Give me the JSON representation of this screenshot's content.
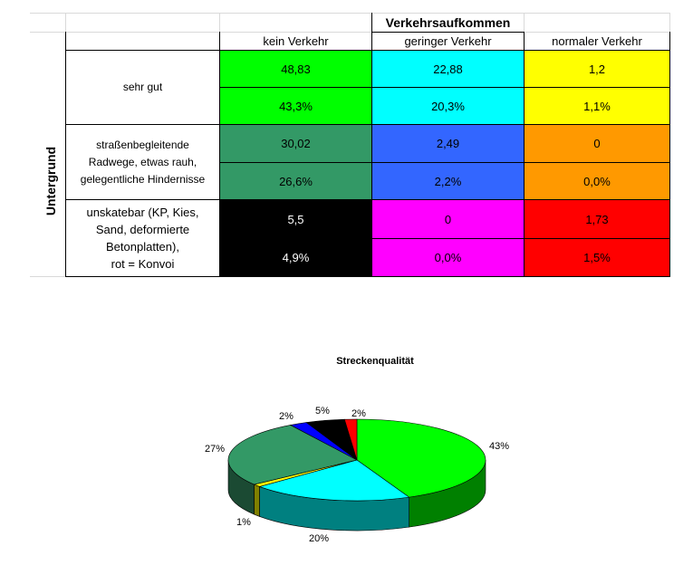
{
  "table": {
    "group_header": "Verkehrsaufkommen",
    "side_header": "Untergrund",
    "columns": [
      "kein Verkehr",
      "geringer Verkehr",
      "normaler Verkehr"
    ],
    "rows": [
      {
        "label_lines": [
          "sehr gut"
        ],
        "values": [
          "48,83",
          "22,88",
          "1,2"
        ],
        "percents": [
          "43,3%",
          "20,3%",
          "1,1%"
        ],
        "colors": [
          "#00ff00",
          "#00ffff",
          "#ffff00"
        ],
        "text_colors": [
          "#000000",
          "#000000",
          "#000000"
        ]
      },
      {
        "label_lines": [
          "straßenbegleitende",
          "Radwege, etwas rauh,",
          "gelegentliche Hindernisse"
        ],
        "values": [
          "30,02",
          "2,49",
          "0"
        ],
        "percents": [
          "26,6%",
          "2,2%",
          "0,0%"
        ],
        "colors": [
          "#339966",
          "#3366ff",
          "#ff9900"
        ],
        "text_colors": [
          "#000000",
          "#000000",
          "#000000"
        ]
      },
      {
        "label_lines": [
          "unskatebar (KP, Kies,",
          "Sand, deformierte",
          "Betonplatten),",
          "rot = Konvoi"
        ],
        "values": [
          "5,5",
          "0",
          "1,73"
        ],
        "percents": [
          "4,9%",
          "0,0%",
          "1,5%"
        ],
        "colors": [
          "#000000",
          "#ff00ff",
          "#ff0000"
        ],
        "text_colors": [
          "#ffffff",
          "#000000",
          "#000000"
        ]
      }
    ]
  },
  "chart_data": {
    "type": "pie",
    "title": "Streckenqualität",
    "slices": [
      {
        "value": 48.83,
        "label": "43%",
        "color": "#00ff00",
        "side": "#008000"
      },
      {
        "value": 22.88,
        "label": "20%",
        "color": "#00ffff",
        "side": "#008080"
      },
      {
        "value": 1.2,
        "label": "1%",
        "color": "#ffff00",
        "side": "#808000"
      },
      {
        "value": 30.02,
        "label": "27%",
        "color": "#339966",
        "side": "#1b4a33"
      },
      {
        "value": 2.49,
        "label": "2%",
        "color": "#0000ff",
        "side": "#000080"
      },
      {
        "value": 5.5,
        "label": "5%",
        "color": "#000000",
        "side": "#000000"
      },
      {
        "value": 1.73,
        "label": "2%",
        "color": "#ff0000",
        "side": "#800000"
      }
    ]
  }
}
